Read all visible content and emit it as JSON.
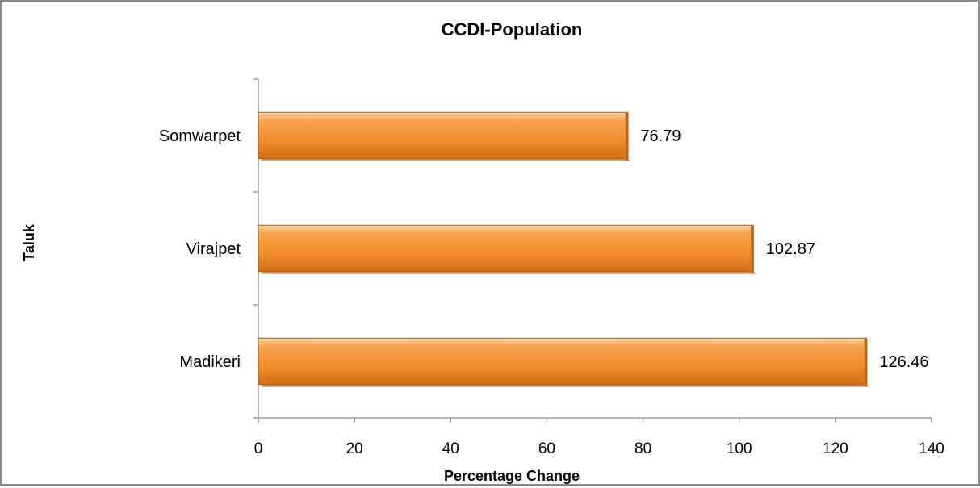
{
  "chart_data": {
    "type": "bar",
    "orientation": "horizontal",
    "title": "CCDI-Population",
    "xlabel": "Percentage Change",
    "ylabel": "Taluk",
    "categories": [
      "Madikeri",
      "Virajpet",
      "Somwarpet"
    ],
    "values": [
      126.46,
      102.87,
      76.79
    ],
    "data_labels": [
      "126.46",
      "102.87",
      "76.79"
    ],
    "xlim": [
      0,
      140
    ],
    "x_ticks": [
      0,
      20,
      40,
      60,
      80,
      100,
      120,
      140
    ],
    "x_tick_labels": [
      "0",
      "20",
      "40",
      "60",
      "80",
      "100",
      "120",
      "140"
    ],
    "grid": false,
    "legend": "none",
    "bar_color": "#f39a3c",
    "bar_color_dark": "#c96a14"
  }
}
